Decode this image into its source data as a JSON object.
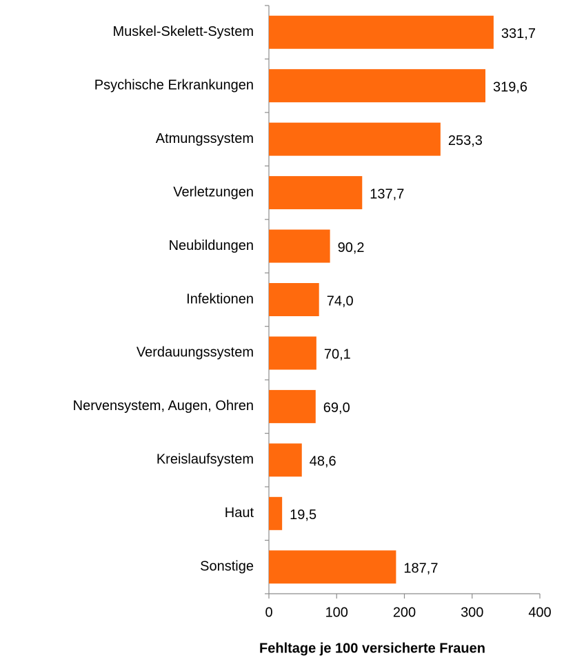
{
  "chart_data": {
    "type": "bar",
    "orientation": "horizontal",
    "categories": [
      "Muskel-Skelett-System",
      "Psychische Erkrankungen",
      "Atmungssystem",
      "Verletzungen",
      "Neubildungen",
      "Infektionen",
      "Verdauungssystem",
      "Nervensystem, Augen, Ohren",
      "Kreislaufsystem",
      "Haut",
      "Sonstige"
    ],
    "values": [
      331.7,
      319.6,
      253.3,
      137.7,
      90.2,
      74.0,
      70.1,
      69.0,
      48.6,
      19.5,
      187.7
    ],
    "value_labels": [
      "331,7",
      "319,6",
      "253,3",
      "137,7",
      "90,2",
      "74,0",
      "70,1",
      "69,0",
      "48,6",
      "19,5",
      "187,7"
    ],
    "color": "#ff6a0d",
    "xlabel": "Fehltage je 100 versicherte Frauen",
    "xlim": [
      0,
      400
    ],
    "xticks": [
      0,
      100,
      200,
      300,
      400
    ],
    "grid": false
  }
}
